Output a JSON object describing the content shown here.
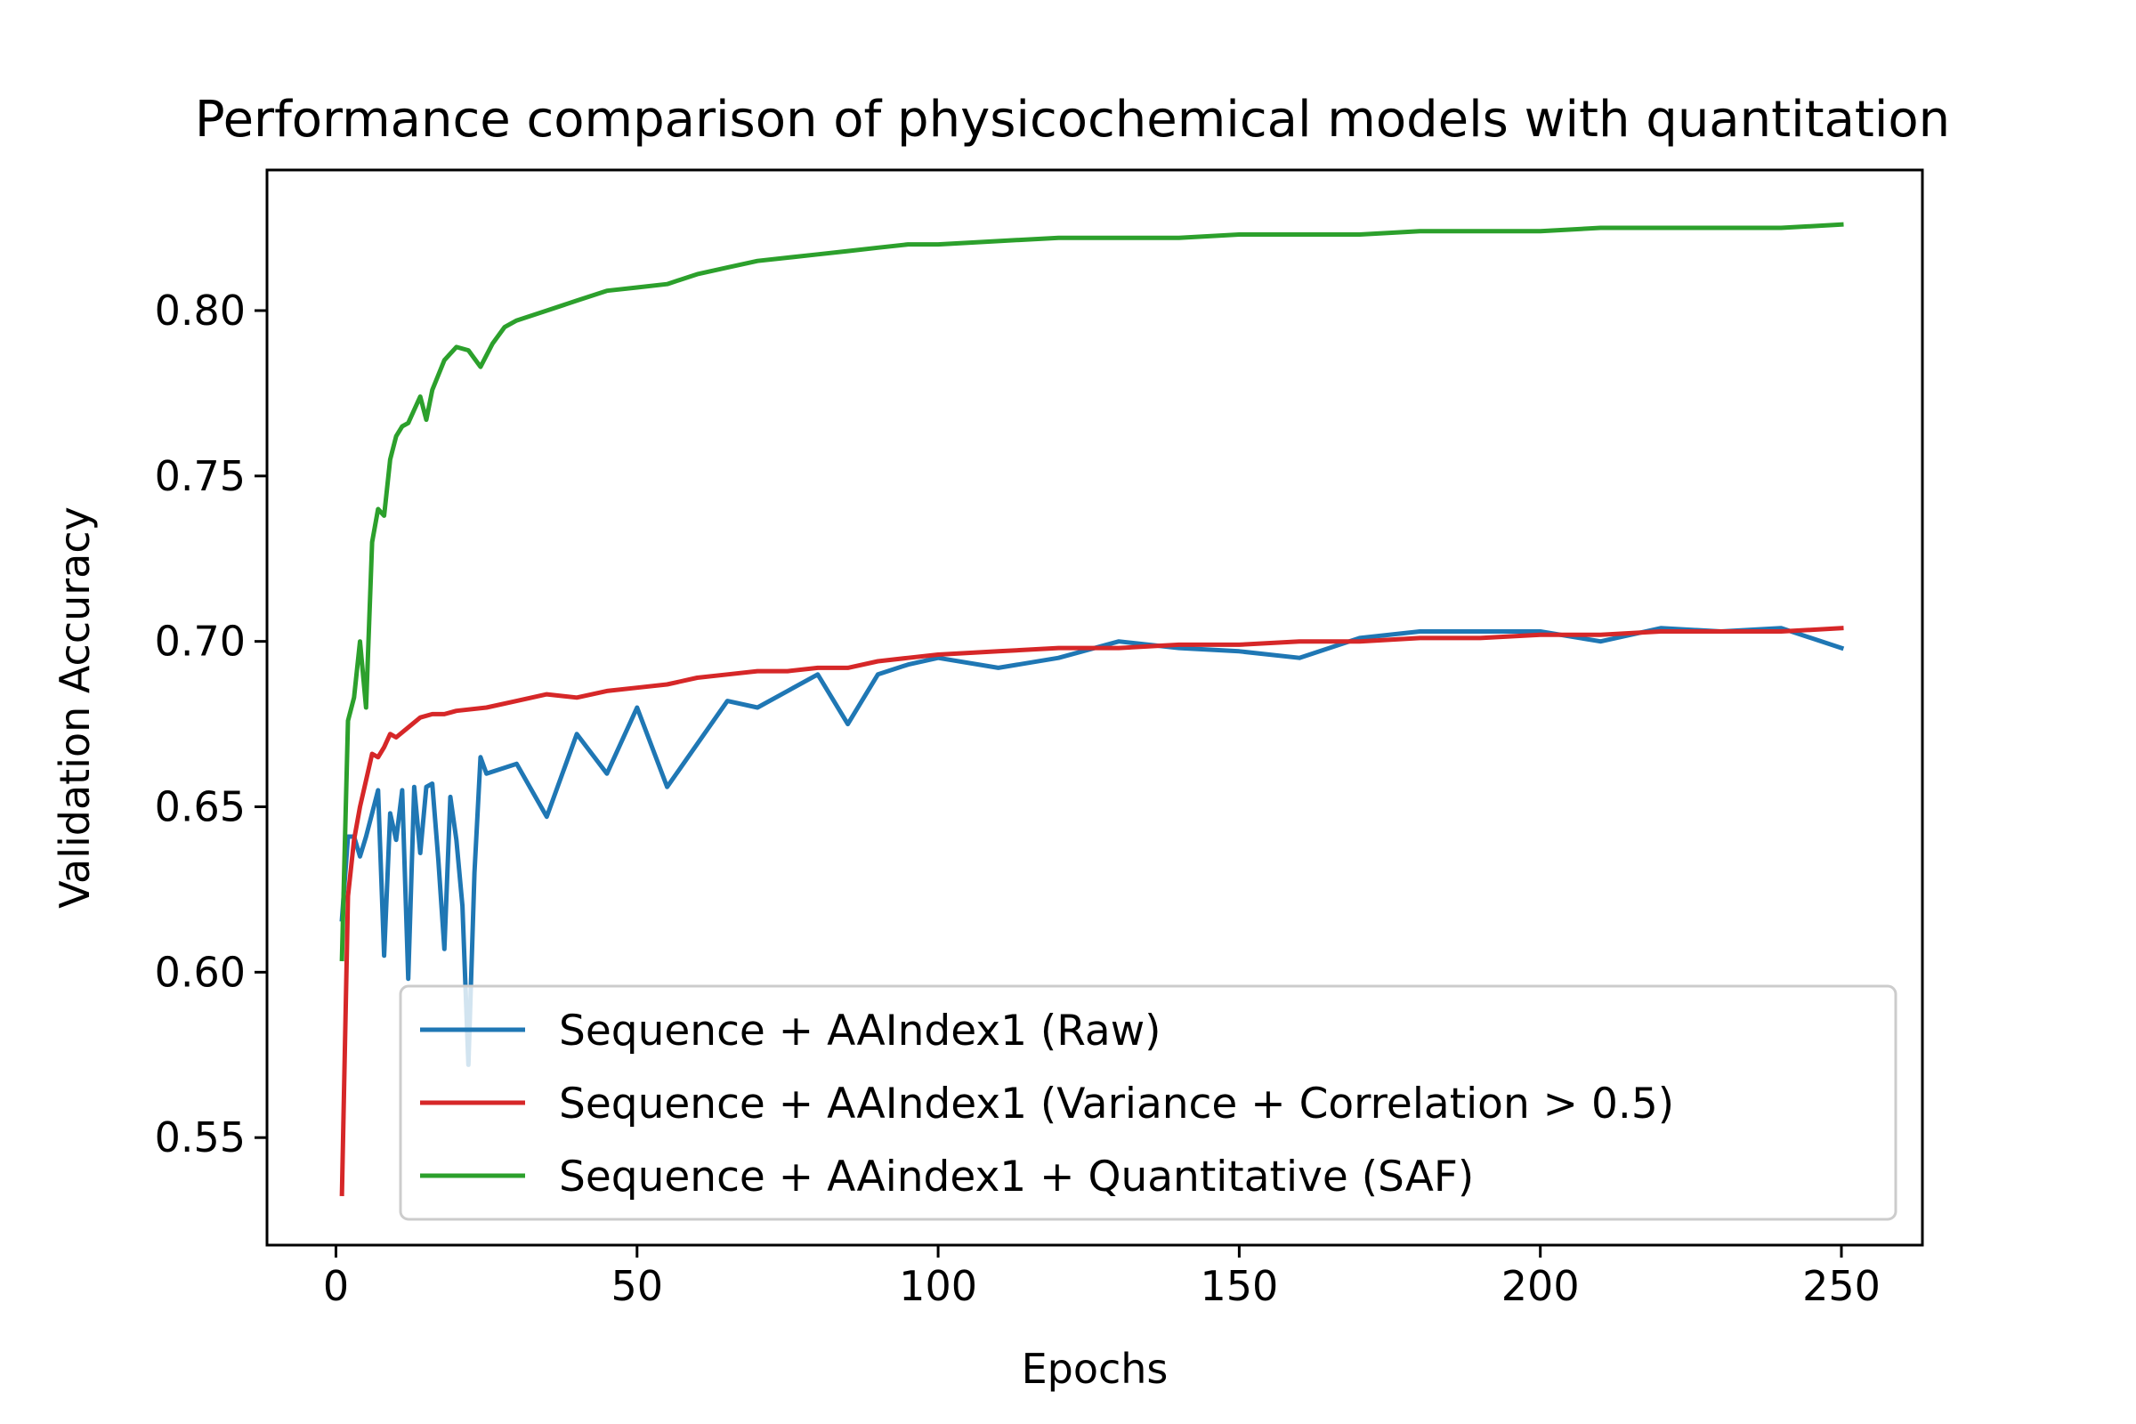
{
  "chart_data": {
    "type": "line",
    "title": "Performance comparison of physicochemical models with quantitation",
    "xlabel": "Epochs",
    "ylabel": "Validation Accuracy",
    "xlim": [
      -11.45,
      263.45
    ],
    "ylim": [
      0.5175,
      0.8425
    ],
    "xticks": [
      0,
      50,
      100,
      150,
      200,
      250
    ],
    "yticks": [
      0.55,
      0.6,
      0.65,
      0.7,
      0.75,
      0.8
    ],
    "xtick_labels": [
      "0",
      "50",
      "100",
      "150",
      "200",
      "250"
    ],
    "ytick_labels": [
      "0.55",
      "0.60",
      "0.65",
      "0.70",
      "0.75",
      "0.80"
    ],
    "grid": false,
    "legend_position": "lower right",
    "series": [
      {
        "name": "Sequence + AAIndex1 (Raw)",
        "color": "#1f77b4",
        "x": [
          1,
          2,
          3,
          4,
          5,
          6,
          7,
          8,
          9,
          10,
          11,
          12,
          13,
          14,
          15,
          16,
          17,
          18,
          19,
          20,
          21,
          22,
          23,
          24,
          25,
          30,
          35,
          40,
          45,
          50,
          55,
          60,
          65,
          70,
          75,
          80,
          85,
          90,
          95,
          100,
          110,
          120,
          130,
          140,
          150,
          160,
          170,
          180,
          190,
          200,
          210,
          220,
          230,
          240,
          250
        ],
        "values": [
          0.616,
          0.641,
          0.641,
          0.635,
          0.641,
          0.648,
          0.655,
          0.605,
          0.648,
          0.64,
          0.655,
          0.598,
          0.656,
          0.636,
          0.656,
          0.657,
          0.634,
          0.607,
          0.653,
          0.64,
          0.62,
          0.572,
          0.63,
          0.665,
          0.66,
          0.663,
          0.647,
          0.672,
          0.66,
          0.68,
          0.656,
          0.669,
          0.682,
          0.68,
          0.685,
          0.69,
          0.675,
          0.69,
          0.693,
          0.695,
          0.692,
          0.695,
          0.7,
          0.698,
          0.697,
          0.695,
          0.701,
          0.703,
          0.703,
          0.703,
          0.7,
          0.704,
          0.703,
          0.704,
          0.698
        ]
      },
      {
        "name": "Sequence + AAIndex1 (Variance + Correlation > 0.5)",
        "color": "#d62728",
        "x": [
          1,
          2,
          3,
          4,
          5,
          6,
          7,
          8,
          9,
          10,
          12,
          14,
          16,
          18,
          20,
          25,
          30,
          35,
          40,
          45,
          50,
          55,
          60,
          65,
          70,
          75,
          80,
          85,
          90,
          95,
          100,
          110,
          120,
          130,
          140,
          150,
          160,
          170,
          180,
          190,
          200,
          210,
          220,
          230,
          240,
          250
        ],
        "values": [
          0.533,
          0.623,
          0.64,
          0.65,
          0.658,
          0.666,
          0.665,
          0.668,
          0.672,
          0.671,
          0.674,
          0.677,
          0.678,
          0.678,
          0.679,
          0.68,
          0.682,
          0.684,
          0.683,
          0.685,
          0.686,
          0.687,
          0.689,
          0.69,
          0.691,
          0.691,
          0.692,
          0.692,
          0.694,
          0.695,
          0.696,
          0.697,
          0.698,
          0.698,
          0.699,
          0.699,
          0.7,
          0.7,
          0.701,
          0.701,
          0.702,
          0.702,
          0.703,
          0.703,
          0.703,
          0.704
        ]
      },
      {
        "name": "Sequence + AAindex1 + Quantitative (SAF)",
        "color": "#2ca02c",
        "x": [
          1,
          2,
          3,
          4,
          5,
          6,
          7,
          8,
          9,
          10,
          11,
          12,
          13,
          14,
          15,
          16,
          18,
          20,
          22,
          24,
          26,
          28,
          30,
          35,
          40,
          45,
          50,
          55,
          60,
          65,
          70,
          75,
          80,
          85,
          90,
          95,
          100,
          110,
          120,
          130,
          140,
          150,
          160,
          170,
          180,
          190,
          200,
          210,
          220,
          230,
          240,
          250
        ],
        "values": [
          0.604,
          0.676,
          0.683,
          0.7,
          0.68,
          0.73,
          0.74,
          0.738,
          0.755,
          0.762,
          0.765,
          0.766,
          0.77,
          0.774,
          0.767,
          0.776,
          0.785,
          0.789,
          0.788,
          0.783,
          0.79,
          0.795,
          0.797,
          0.8,
          0.803,
          0.806,
          0.807,
          0.808,
          0.811,
          0.813,
          0.815,
          0.816,
          0.817,
          0.818,
          0.819,
          0.82,
          0.82,
          0.821,
          0.822,
          0.822,
          0.822,
          0.823,
          0.823,
          0.823,
          0.824,
          0.824,
          0.824,
          0.825,
          0.825,
          0.825,
          0.825,
          0.826
        ]
      }
    ]
  }
}
